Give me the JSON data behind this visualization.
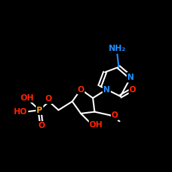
{
  "background": "#000000",
  "bond_color": "#ffffff",
  "bond_lw": 1.6,
  "N_color": "#1e90ff",
  "O_color": "#ff2200",
  "P_color": "#ffa500",
  "NH2_color": "#1e90ff",
  "label_fontsize": 8.5,
  "fig_size": [
    2.5,
    2.5
  ],
  "dpi": 100,
  "xlim": [
    0,
    10
  ],
  "ylim": [
    0,
    10
  ]
}
